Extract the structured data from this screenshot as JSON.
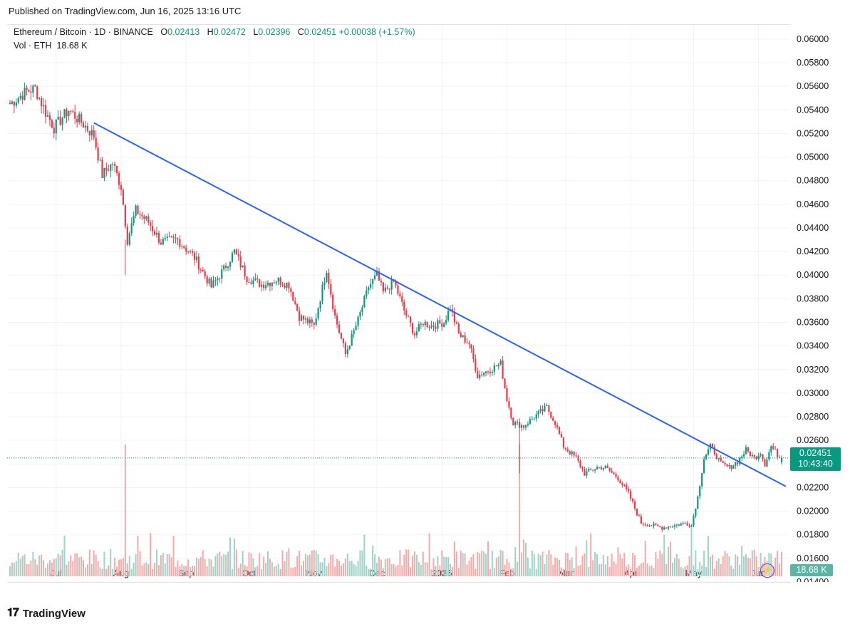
{
  "published": "Published on TradingView.com, Jun 16, 2025 13:16 UTC",
  "legend": {
    "symbol": "Ethereum / Bitcoin · 1D · BINANCE",
    "o_label": "O",
    "o": "0.02413",
    "h_label": "H",
    "h": "0.02472",
    "l_label": "L",
    "l": "0.02396",
    "c_label": "C",
    "c": "0.02451",
    "change": "+0.00038 (+1.57%)",
    "vol_label": "Vol · ETH",
    "vol_value": "18.68 K"
  },
  "price_tag": {
    "price": "0.02451",
    "countdown": "10:43:40"
  },
  "volume_tag": "18.68 K",
  "footer": {
    "brand": "TradingView"
  },
  "colors": {
    "up": "#089981",
    "down": "#f23645",
    "trendline": "#2962ff",
    "vol_up": "#9ed3c8",
    "vol_down": "#f7a9a7"
  },
  "chart_data": {
    "type": "candlestick",
    "symbol": "ETH/BTC",
    "interval": "1D",
    "ylim": [
      0.014,
      0.0612
    ],
    "y_ticks": [
      "0.06000",
      "0.05800",
      "0.05600",
      "0.05400",
      "0.05200",
      "0.05000",
      "0.04800",
      "0.04600",
      "0.04400",
      "0.04200",
      "0.04000",
      "0.03800",
      "0.03600",
      "0.03400",
      "0.03200",
      "0.03000",
      "0.02800",
      "0.02600",
      "0.02400",
      "0.02200",
      "0.02000",
      "0.01800",
      "0.01600",
      "0.01400"
    ],
    "x_ticks": [
      {
        "label": "Jul",
        "day": 22
      },
      {
        "label": "Aug",
        "day": 53
      },
      {
        "label": "Sep",
        "day": 84
      },
      {
        "label": "Oct",
        "day": 114
      },
      {
        "label": "Nov",
        "day": 145
      },
      {
        "label": "Dec",
        "day": 175
      },
      {
        "label": "2025",
        "day": 206
      },
      {
        "label": "Feb",
        "day": 237
      },
      {
        "label": "Mar",
        "day": 265
      },
      {
        "label": "Apr",
        "day": 296
      },
      {
        "label": "May",
        "day": 326
      },
      {
        "label": "Jun",
        "day": 357
      }
    ],
    "close_anchors": [
      [
        0,
        0.0545
      ],
      [
        8,
        0.0556
      ],
      [
        12,
        0.0558
      ],
      [
        17,
        0.0538
      ],
      [
        21,
        0.0525
      ],
      [
        28,
        0.054
      ],
      [
        35,
        0.0528
      ],
      [
        40,
        0.0518
      ],
      [
        44,
        0.0485
      ],
      [
        49,
        0.0495
      ],
      [
        53,
        0.0475
      ],
      [
        56,
        0.043
      ],
      [
        60,
        0.0455
      ],
      [
        66,
        0.0445
      ],
      [
        72,
        0.0428
      ],
      [
        80,
        0.043
      ],
      [
        88,
        0.0415
      ],
      [
        96,
        0.039
      ],
      [
        102,
        0.0405
      ],
      [
        107,
        0.042
      ],
      [
        113,
        0.0398
      ],
      [
        120,
        0.0392
      ],
      [
        127,
        0.0396
      ],
      [
        133,
        0.0392
      ],
      [
        138,
        0.0365
      ],
      [
        145,
        0.0357
      ],
      [
        151,
        0.0405
      ],
      [
        155,
        0.0365
      ],
      [
        160,
        0.0333
      ],
      [
        166,
        0.0362
      ],
      [
        171,
        0.039
      ],
      [
        175,
        0.04
      ],
      [
        178,
        0.0385
      ],
      [
        183,
        0.0395
      ],
      [
        188,
        0.037
      ],
      [
        193,
        0.035
      ],
      [
        197,
        0.036
      ],
      [
        201,
        0.0357
      ],
      [
        207,
        0.036
      ],
      [
        210,
        0.0373
      ],
      [
        214,
        0.035
      ],
      [
        219,
        0.0342
      ],
      [
        223,
        0.0315
      ],
      [
        229,
        0.032
      ],
      [
        234,
        0.0325
      ],
      [
        237,
        0.0295
      ],
      [
        240,
        0.0275
      ],
      [
        245,
        0.0272
      ],
      [
        250,
        0.028
      ],
      [
        256,
        0.0288
      ],
      [
        260,
        0.0275
      ],
      [
        264,
        0.0255
      ],
      [
        270,
        0.0245
      ],
      [
        274,
        0.0232
      ],
      [
        280,
        0.0237
      ],
      [
        284,
        0.0237
      ],
      [
        290,
        0.0228
      ],
      [
        295,
        0.0215
      ],
      [
        301,
        0.019
      ],
      [
        306,
        0.0188
      ],
      [
        311,
        0.0186
      ],
      [
        317,
        0.0188
      ],
      [
        322,
        0.019
      ],
      [
        325,
        0.0188
      ],
      [
        328,
        0.0212
      ],
      [
        331,
        0.0245
      ],
      [
        334,
        0.0255
      ],
      [
        336,
        0.025
      ],
      [
        339,
        0.024
      ],
      [
        343,
        0.0237
      ],
      [
        347,
        0.0242
      ],
      [
        351,
        0.0252
      ],
      [
        355,
        0.0245
      ],
      [
        358,
        0.025
      ],
      [
        360,
        0.024
      ],
      [
        363,
        0.0255
      ],
      [
        366,
        0.0248
      ],
      [
        368,
        0.0245
      ]
    ],
    "last_candle": {
      "open": 0.02413,
      "high": 0.02472,
      "low": 0.02396,
      "close": 0.02451
    },
    "trendline": {
      "start": [
        40,
        0.0529
      ],
      "end": [
        370,
        0.0221
      ]
    },
    "current_price": 0.02451,
    "volume_spikes": [
      {
        "day": 55,
        "volume": "large"
      },
      {
        "day": 243,
        "volume": "large"
      },
      {
        "day": 325,
        "volume": "medium"
      }
    ]
  }
}
